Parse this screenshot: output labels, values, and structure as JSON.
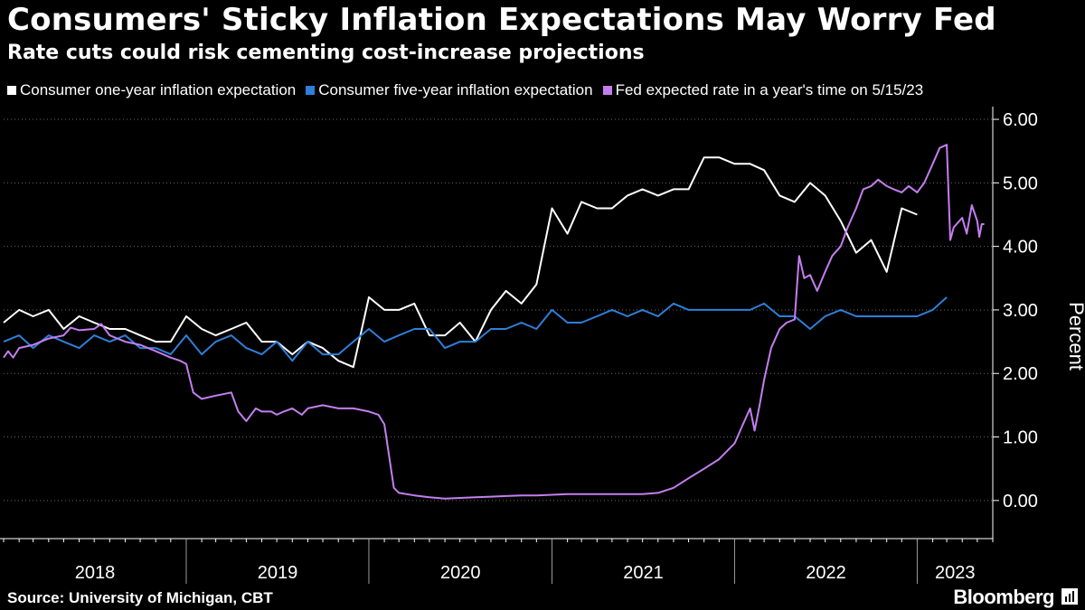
{
  "header": {
    "title": "Consumers' Sticky Inflation Expectations May Worry Fed",
    "subtitle": "Rate cuts could risk cementing cost-increase projections"
  },
  "footer": {
    "source": "Source: University of Michigan, CBT",
    "brand": "Bloomberg"
  },
  "colors": {
    "background": "#000000",
    "one_year": "#ffffff",
    "five_year": "#2e7fd9",
    "fed_rate": "#c47ef0"
  },
  "chart_data": {
    "type": "line",
    "title": "Consumers' Sticky Inflation Expectations May Worry Fed",
    "subtitle": "Rate cuts could risk cementing cost-increase projections",
    "ylabel": "Percent",
    "ylim": [
      -0.6,
      6.2
    ],
    "y_ticks": [
      "0.00",
      "1.00",
      "2.00",
      "3.00",
      "4.00",
      "5.00",
      "6.00"
    ],
    "y_tick_values": [
      0,
      1,
      2,
      3,
      4,
      5,
      6
    ],
    "x_tick_labels": [
      "2018",
      "2019",
      "2020",
      "2021",
      "2022",
      "2023"
    ],
    "xlim": [
      "2018-01-01",
      "2023-06-01"
    ],
    "y_axis_position": "right",
    "grid": "horizontal dotted",
    "legend_position": "top-left",
    "series": [
      {
        "name": "Consumer one-year inflation expectation",
        "color": "#ffffff",
        "kind": "line",
        "points": [
          [
            "2018-01",
            "2.8"
          ],
          [
            "2018-02",
            "3.0"
          ],
          [
            "2018-03",
            "2.9"
          ],
          [
            "2018-04",
            "3.0"
          ],
          [
            "2018-05",
            "2.7"
          ],
          [
            "2018-06",
            "2.9"
          ],
          [
            "2018-07",
            "2.8"
          ],
          [
            "2018-08",
            "2.7"
          ],
          [
            "2018-09",
            "2.7"
          ],
          [
            "2018-10",
            "2.6"
          ],
          [
            "2018-11",
            "2.5"
          ],
          [
            "2018-12",
            "2.5"
          ],
          [
            "2019-01",
            "2.9"
          ],
          [
            "2019-02",
            "2.7"
          ],
          [
            "2019-03",
            "2.6"
          ],
          [
            "2019-04",
            "2.7"
          ],
          [
            "2019-05",
            "2.8"
          ],
          [
            "2019-06",
            "2.5"
          ],
          [
            "2019-07",
            "2.5"
          ],
          [
            "2019-08",
            "2.3"
          ],
          [
            "2019-09",
            "2.5"
          ],
          [
            "2019-10",
            "2.4"
          ],
          [
            "2019-11",
            "2.2"
          ],
          [
            "2019-12",
            "2.1"
          ],
          [
            "2020-01",
            "3.2"
          ],
          [
            "2020-02",
            "3.0"
          ],
          [
            "2020-03",
            "3.0"
          ],
          [
            "2020-04",
            "3.1"
          ],
          [
            "2020-05",
            "2.6"
          ],
          [
            "2020-06",
            "2.6"
          ],
          [
            "2020-07",
            "2.8"
          ],
          [
            "2020-08",
            "2.5"
          ],
          [
            "2020-09",
            "3.0"
          ],
          [
            "2020-10",
            "3.3"
          ],
          [
            "2020-11",
            "3.1"
          ],
          [
            "2020-12",
            "3.4"
          ],
          [
            "2021-01",
            "4.6"
          ],
          [
            "2021-02",
            "4.2"
          ],
          [
            "2021-03",
            "4.7"
          ],
          [
            "2021-04",
            "4.6"
          ],
          [
            "2021-05",
            "4.6"
          ],
          [
            "2021-06",
            "4.8"
          ],
          [
            "2021-07",
            "4.9"
          ],
          [
            "2021-08",
            "4.8"
          ],
          [
            "2021-09",
            "4.9"
          ],
          [
            "2021-10",
            "4.9"
          ],
          [
            "2021-11",
            "5.4"
          ],
          [
            "2021-12",
            "5.4"
          ],
          [
            "2022-01",
            "5.3"
          ],
          [
            "2022-02",
            "5.3"
          ],
          [
            "2022-03",
            "5.2"
          ],
          [
            "2022-04",
            "4.8"
          ],
          [
            "2022-05",
            "4.7"
          ],
          [
            "2022-06",
            "5.0"
          ],
          [
            "2022-07",
            "4.8"
          ],
          [
            "2022-08",
            "4.4"
          ],
          [
            "2022-09",
            "3.9"
          ],
          [
            "2022-10",
            "4.1"
          ],
          [
            "2022-11",
            "3.6"
          ],
          [
            "2022-12",
            "4.6"
          ],
          [
            "2023-01",
            "4.5"
          ]
        ]
      },
      {
        "name": "Consumer five-year inflation expectation",
        "color": "#2e7fd9",
        "kind": "line",
        "points": [
          [
            "2018-01",
            "2.5"
          ],
          [
            "2018-02",
            "2.6"
          ],
          [
            "2018-03",
            "2.4"
          ],
          [
            "2018-04",
            "2.6"
          ],
          [
            "2018-05",
            "2.5"
          ],
          [
            "2018-06",
            "2.4"
          ],
          [
            "2018-07",
            "2.6"
          ],
          [
            "2018-08",
            "2.5"
          ],
          [
            "2018-09",
            "2.6"
          ],
          [
            "2018-10",
            "2.4"
          ],
          [
            "2018-11",
            "2.4"
          ],
          [
            "2018-12",
            "2.3"
          ],
          [
            "2019-01",
            "2.6"
          ],
          [
            "2019-02",
            "2.3"
          ],
          [
            "2019-03",
            "2.5"
          ],
          [
            "2019-04",
            "2.6"
          ],
          [
            "2019-05",
            "2.4"
          ],
          [
            "2019-06",
            "2.3"
          ],
          [
            "2019-07",
            "2.5"
          ],
          [
            "2019-08",
            "2.2"
          ],
          [
            "2019-09",
            "2.5"
          ],
          [
            "2019-10",
            "2.3"
          ],
          [
            "2019-11",
            "2.3"
          ],
          [
            "2019-12",
            "2.5"
          ],
          [
            "2020-01",
            "2.7"
          ],
          [
            "2020-02",
            "2.5"
          ],
          [
            "2020-03",
            "2.6"
          ],
          [
            "2020-04",
            "2.7"
          ],
          [
            "2020-05",
            "2.7"
          ],
          [
            "2020-06",
            "2.4"
          ],
          [
            "2020-07",
            "2.5"
          ],
          [
            "2020-08",
            "2.5"
          ],
          [
            "2020-09",
            "2.7"
          ],
          [
            "2020-10",
            "2.7"
          ],
          [
            "2020-11",
            "2.8"
          ],
          [
            "2020-12",
            "2.7"
          ],
          [
            "2021-01",
            "3.0"
          ],
          [
            "2021-02",
            "2.8"
          ],
          [
            "2021-03",
            "2.8"
          ],
          [
            "2021-04",
            "2.9"
          ],
          [
            "2021-05",
            "3.0"
          ],
          [
            "2021-06",
            "2.9"
          ],
          [
            "2021-07",
            "3.0"
          ],
          [
            "2021-08",
            "2.9"
          ],
          [
            "2021-09",
            "3.1"
          ],
          [
            "2021-10",
            "3.0"
          ],
          [
            "2021-11",
            "3.0"
          ],
          [
            "2021-12",
            "3.0"
          ],
          [
            "2022-01",
            "3.0"
          ],
          [
            "2022-02",
            "3.0"
          ],
          [
            "2022-03",
            "3.1"
          ],
          [
            "2022-04",
            "2.9"
          ],
          [
            "2022-05",
            "2.9"
          ],
          [
            "2022-06",
            "2.7"
          ],
          [
            "2022-07",
            "2.9"
          ],
          [
            "2022-08",
            "3.0"
          ],
          [
            "2022-09",
            "2.9"
          ],
          [
            "2022-10",
            "2.9"
          ],
          [
            "2022-11",
            "2.9"
          ],
          [
            "2022-12",
            "2.9"
          ],
          [
            "2023-01",
            "2.9"
          ],
          [
            "2023-02",
            "3.0"
          ],
          [
            "2023-03",
            "3.2"
          ]
        ]
      },
      {
        "name": "Fed expected rate in a year's time on 5/15/23",
        "color": "#c47ef0",
        "kind": "line",
        "points": [
          [
            "2018-01-01",
            "2.25"
          ],
          [
            "2018-01-10",
            "2.35"
          ],
          [
            "2018-01-20",
            "2.25"
          ],
          [
            "2018-02-01",
            "2.4"
          ],
          [
            "2018-03-01",
            "2.45"
          ],
          [
            "2018-04-01",
            "2.55"
          ],
          [
            "2018-05-01",
            "2.6"
          ],
          [
            "2018-05-15",
            "2.72"
          ],
          [
            "2018-06-01",
            "2.68"
          ],
          [
            "2018-07-01",
            "2.7"
          ],
          [
            "2018-07-15",
            "2.78"
          ],
          [
            "2018-08-01",
            "2.6"
          ],
          [
            "2018-09-01",
            "2.5"
          ],
          [
            "2018-10-01",
            "2.45"
          ],
          [
            "2018-11-01",
            "2.35"
          ],
          [
            "2018-12-01",
            "2.25"
          ],
          [
            "2018-12-20",
            "2.2"
          ],
          [
            "2019-01-01",
            "2.15"
          ],
          [
            "2019-01-15",
            "1.7"
          ],
          [
            "2019-02-01",
            "1.6"
          ],
          [
            "2019-03-01",
            "1.65"
          ],
          [
            "2019-04-01",
            "1.7"
          ],
          [
            "2019-04-15",
            "1.4"
          ],
          [
            "2019-05-01",
            "1.25"
          ],
          [
            "2019-05-20",
            "1.45"
          ],
          [
            "2019-06-01",
            "1.4"
          ],
          [
            "2019-06-20",
            "1.4"
          ],
          [
            "2019-07-01",
            "1.35"
          ],
          [
            "2019-07-15",
            "1.4"
          ],
          [
            "2019-08-01",
            "1.45"
          ],
          [
            "2019-08-20",
            "1.35"
          ],
          [
            "2019-09-01",
            "1.45"
          ],
          [
            "2019-10-01",
            "1.5"
          ],
          [
            "2019-11-01",
            "1.45"
          ],
          [
            "2019-12-01",
            "1.45"
          ],
          [
            "2020-01-01",
            "1.4"
          ],
          [
            "2020-01-20",
            "1.35"
          ],
          [
            "2020-02-01",
            "1.2"
          ],
          [
            "2020-02-20",
            "0.2"
          ],
          [
            "2020-03-01",
            "0.12"
          ],
          [
            "2020-04-01",
            "0.08"
          ],
          [
            "2020-05-01",
            "0.05"
          ],
          [
            "2020-06-01",
            "0.03"
          ],
          [
            "2020-07-01",
            "0.04"
          ],
          [
            "2020-08-01",
            "0.05"
          ],
          [
            "2020-09-01",
            "0.06"
          ],
          [
            "2020-10-01",
            "0.07"
          ],
          [
            "2020-11-01",
            "0.08"
          ],
          [
            "2020-12-01",
            "0.08"
          ],
          [
            "2021-01-01",
            "0.09"
          ],
          [
            "2021-02-01",
            "0.1"
          ],
          [
            "2021-03-01",
            "0.1"
          ],
          [
            "2021-04-01",
            "0.1"
          ],
          [
            "2021-05-01",
            "0.1"
          ],
          [
            "2021-06-01",
            "0.1"
          ],
          [
            "2021-07-01",
            "0.1"
          ],
          [
            "2021-08-01",
            "0.12"
          ],
          [
            "2021-09-01",
            "0.2"
          ],
          [
            "2021-10-01",
            "0.35"
          ],
          [
            "2021-11-01",
            "0.5"
          ],
          [
            "2021-12-01",
            "0.65"
          ],
          [
            "2022-01-01",
            "0.9"
          ],
          [
            "2022-01-15",
            "1.15"
          ],
          [
            "2022-02-01",
            "1.45"
          ],
          [
            "2022-02-10",
            "1.1"
          ],
          [
            "2022-02-20",
            "1.5"
          ],
          [
            "2022-03-01",
            "1.9"
          ],
          [
            "2022-03-15",
            "2.4"
          ],
          [
            "2022-04-01",
            "2.7"
          ],
          [
            "2022-04-15",
            "2.8"
          ],
          [
            "2022-05-01",
            "2.85"
          ],
          [
            "2022-05-10",
            "3.85"
          ],
          [
            "2022-05-20",
            "3.5"
          ],
          [
            "2022-06-01",
            "3.55"
          ],
          [
            "2022-06-15",
            "3.3"
          ],
          [
            "2022-07-01",
            "3.6"
          ],
          [
            "2022-07-15",
            "3.85"
          ],
          [
            "2022-08-01",
            "4.0"
          ],
          [
            "2022-08-15",
            "4.3"
          ],
          [
            "2022-09-01",
            "4.6"
          ],
          [
            "2022-09-15",
            "4.9"
          ],
          [
            "2022-10-01",
            "4.95"
          ],
          [
            "2022-10-15",
            "5.05"
          ],
          [
            "2022-11-01",
            "4.95"
          ],
          [
            "2022-11-15",
            "4.9"
          ],
          [
            "2022-12-01",
            "4.85"
          ],
          [
            "2022-12-15",
            "4.95"
          ],
          [
            "2023-01-01",
            "4.85"
          ],
          [
            "2023-01-15",
            "5.0"
          ],
          [
            "2023-02-01",
            "5.3"
          ],
          [
            "2023-02-15",
            "5.55"
          ],
          [
            "2023-03-01",
            "5.6"
          ],
          [
            "2023-03-08",
            "4.1"
          ],
          [
            "2023-03-15",
            "4.3"
          ],
          [
            "2023-04-01",
            "4.45"
          ],
          [
            "2023-04-10",
            "4.2"
          ],
          [
            "2023-04-20",
            "4.65"
          ],
          [
            "2023-05-01",
            "4.4"
          ],
          [
            "2023-05-05",
            "4.15"
          ],
          [
            "2023-05-10",
            "4.35"
          ],
          [
            "2023-05-15",
            "4.35"
          ]
        ]
      }
    ]
  }
}
